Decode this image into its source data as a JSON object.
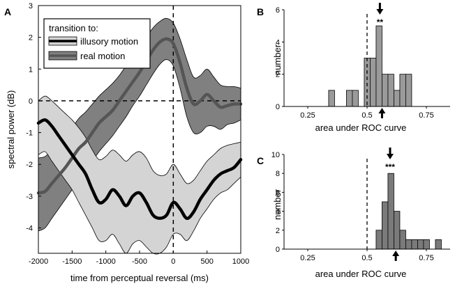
{
  "panel_labels": [
    "A",
    "B",
    "C"
  ],
  "chart_data": [
    {
      "type": "line",
      "panel": "A",
      "xlabel": "time from perceptual reversal (ms)",
      "ylabel": "spectral power (dB)",
      "xlim": [
        -2000,
        1000
      ],
      "ylim": [
        -4.8,
        3
      ],
      "xticks": [
        -2000,
        -1500,
        -1000,
        -500,
        0,
        500,
        1000
      ],
      "yticks": [
        3,
        2,
        1,
        0,
        -1,
        -2,
        -3,
        -4
      ],
      "reference_lines": {
        "x": 0,
        "y": 0,
        "style": "dashed"
      },
      "legend": {
        "title": "transition to:",
        "position": "top-left"
      },
      "series": [
        {
          "name": "illusory motion",
          "color": "#000000",
          "band_color": "#d4d4d4",
          "x": [
            -2000,
            -1900,
            -1800,
            -1700,
            -1600,
            -1500,
            -1400,
            -1300,
            -1200,
            -1100,
            -1000,
            -900,
            -800,
            -700,
            -600,
            -500,
            -400,
            -300,
            -200,
            -100,
            0,
            100,
            200,
            300,
            400,
            500,
            600,
            700,
            800,
            900,
            1000
          ],
          "y": [
            -0.7,
            -0.6,
            -0.8,
            -1.1,
            -1.4,
            -1.7,
            -2.0,
            -2.3,
            -2.8,
            -3.2,
            -3.1,
            -2.8,
            -3.0,
            -3.3,
            -3.0,
            -2.9,
            -3.2,
            -3.6,
            -3.7,
            -3.6,
            -3.2,
            -3.4,
            -3.7,
            -3.5,
            -3.1,
            -2.8,
            -2.5,
            -2.3,
            -2.2,
            -2.1,
            -1.85
          ],
          "lower": [
            -1.7,
            -1.6,
            -1.9,
            -2.2,
            -2.5,
            -2.8,
            -3.2,
            -3.6,
            -4.0,
            -4.4,
            -4.4,
            -4.2,
            -4.5,
            -4.8,
            -4.5,
            -4.4,
            -4.6,
            -4.8,
            -4.8,
            -4.6,
            -4.2,
            -4.2,
            -4.4,
            -4.1,
            -3.7,
            -3.4,
            -3.1,
            -2.9,
            -2.8,
            -2.6,
            -2.4
          ],
          "upper": [
            0.0,
            0.15,
            0.0,
            -0.2,
            -0.4,
            -0.6,
            -0.85,
            -1.15,
            -1.55,
            -1.85,
            -1.75,
            -1.55,
            -1.7,
            -1.9,
            -1.7,
            -1.6,
            -1.8,
            -2.2,
            -2.35,
            -2.3,
            -2.0,
            -2.3,
            -2.6,
            -2.5,
            -2.2,
            -1.9,
            -1.7,
            -1.5,
            -1.4,
            -1.35,
            -1.3
          ]
        },
        {
          "name": "real motion",
          "color": "#555555",
          "band_color": "#808080",
          "x": [
            -2000,
            -1900,
            -1800,
            -1700,
            -1600,
            -1500,
            -1400,
            -1300,
            -1200,
            -1100,
            -1000,
            -900,
            -800,
            -700,
            -600,
            -500,
            -400,
            -300,
            -200,
            -100,
            0,
            100,
            200,
            300,
            400,
            500,
            600,
            700,
            800,
            900,
            1000
          ],
          "y": [
            -2.9,
            -2.85,
            -2.6,
            -2.35,
            -2.1,
            -1.8,
            -1.5,
            -1.3,
            -1.0,
            -0.7,
            -0.5,
            -0.3,
            0.0,
            0.3,
            0.6,
            0.9,
            1.25,
            1.6,
            1.85,
            1.95,
            1.8,
            1.2,
            0.4,
            -0.1,
            0.0,
            0.2,
            0.0,
            -0.2,
            -0.15,
            -0.1,
            -0.1
          ],
          "lower": [
            -4.1,
            -4.0,
            -3.7,
            -3.4,
            -3.1,
            -2.8,
            -2.5,
            -2.2,
            -1.9,
            -1.6,
            -1.35,
            -1.1,
            -0.8,
            -0.5,
            -0.15,
            0.15,
            0.5,
            0.85,
            1.15,
            1.3,
            1.1,
            0.4,
            -0.5,
            -1.0,
            -1.0,
            -0.8,
            -0.8,
            -0.9,
            -0.75,
            -0.7,
            -0.6
          ],
          "upper": [
            -1.8,
            -1.75,
            -1.55,
            -1.3,
            -1.1,
            -0.85,
            -0.55,
            -0.35,
            -0.1,
            0.15,
            0.35,
            0.55,
            0.8,
            1.1,
            1.35,
            1.65,
            2.0,
            2.3,
            2.5,
            2.6,
            2.45,
            1.95,
            1.3,
            0.75,
            0.8,
            1.0,
            0.75,
            0.5,
            0.45,
            0.45,
            0.4
          ]
        }
      ]
    },
    {
      "type": "bar",
      "panel": "B",
      "xlabel": "area under ROC curve",
      "ylabel": "number",
      "xlim": [
        0.15,
        0.85
      ],
      "ylim": [
        0,
        6
      ],
      "xticks": [
        0.25,
        0.5,
        0.75
      ],
      "xtick_labels": [
        "0.25",
        "0.5",
        "0.75"
      ],
      "yticks": [
        0,
        2,
        4,
        6
      ],
      "bin_width": 0.025,
      "bin_starts": [
        0.338,
        0.413,
        0.438,
        0.488,
        0.513,
        0.538,
        0.563,
        0.588,
        0.613,
        0.638,
        0.663
      ],
      "values": [
        1,
        1,
        1,
        3,
        3,
        5,
        2,
        2,
        1,
        2,
        2
      ],
      "bar_color": "#9a9a9a",
      "chance_line": 0.5,
      "arrow_top": 0.554,
      "arrow_bottom": 0.563,
      "significance": "**"
    },
    {
      "type": "bar",
      "panel": "C",
      "xlabel": "area under ROC curve",
      "ylabel": "number",
      "xlim": [
        0.15,
        0.85
      ],
      "ylim": [
        0,
        10
      ],
      "xticks": [
        0.25,
        0.5,
        0.75
      ],
      "xtick_labels": [
        "0.25",
        "0.5",
        "0.75"
      ],
      "yticks": [
        0,
        2,
        4,
        6,
        8,
        10
      ],
      "bin_width": 0.025,
      "bin_starts": [
        0.538,
        0.563,
        0.588,
        0.613,
        0.638,
        0.663,
        0.688,
        0.713,
        0.738,
        0.788
      ],
      "values": [
        2,
        5,
        8,
        4,
        2,
        1,
        1,
        1,
        1,
        1
      ],
      "bar_color": "#7a7a7a",
      "chance_line": 0.5,
      "arrow_top": 0.597,
      "arrow_bottom": 0.621,
      "significance": "***"
    }
  ]
}
